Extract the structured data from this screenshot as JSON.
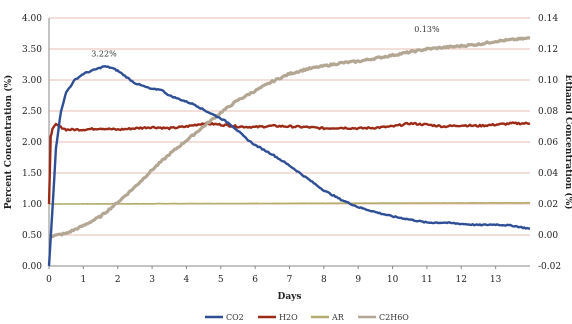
{
  "chart_data": {
    "type": "line",
    "xlabel": "Days",
    "ylabel": "Percent Concentration (%)",
    "y2label": "Ethanol Concentration (%)",
    "xlim": [
      0,
      14
    ],
    "ylim": [
      0,
      4
    ],
    "y2lim": [
      -0.02,
      0.14
    ],
    "x_ticks": [
      0,
      1,
      2,
      3,
      4,
      5,
      6,
      7,
      8,
      9,
      10,
      11,
      12,
      13
    ],
    "y_ticks": [
      "0.00",
      "0.50",
      "1.00",
      "1.50",
      "2.00",
      "2.50",
      "3.00",
      "3.50",
      "4.00"
    ],
    "y2_ticks": [
      "-0.02",
      "0.00",
      "0.02",
      "0.04",
      "0.06",
      "0.08",
      "0.10",
      "0.12",
      "0.14"
    ],
    "grid": "horizontal",
    "legend_position": "bottom",
    "annotations": [
      {
        "text": "3.22%",
        "x": 1.6,
        "y": 3.38,
        "axis": "left"
      },
      {
        "text": "0.13%",
        "x": 11.0,
        "y": 0.131,
        "axis": "right"
      }
    ],
    "series": [
      {
        "name": "CO2",
        "axis": "left",
        "color": "#2e4f95",
        "x": [
          0,
          0.1,
          0.2,
          0.35,
          0.5,
          0.75,
          1,
          1.25,
          1.5,
          1.6,
          1.8,
          2,
          2.25,
          2.5,
          2.75,
          3,
          3.25,
          3.5,
          3.75,
          4,
          4.25,
          4.5,
          4.75,
          5,
          5.25,
          5.5,
          5.75,
          6,
          6.5,
          7,
          7.5,
          8,
          8.5,
          9,
          9.5,
          10,
          10.5,
          11,
          11.5,
          12,
          12.5,
          13,
          13.5,
          14
        ],
        "y": [
          0,
          0.9,
          1.9,
          2.5,
          2.8,
          3.0,
          3.1,
          3.15,
          3.2,
          3.22,
          3.2,
          3.15,
          3.05,
          2.95,
          2.9,
          2.85,
          2.85,
          2.75,
          2.7,
          2.65,
          2.6,
          2.52,
          2.45,
          2.38,
          2.3,
          2.18,
          2.05,
          1.95,
          1.8,
          1.62,
          1.42,
          1.22,
          1.07,
          0.95,
          0.87,
          0.8,
          0.75,
          0.7,
          0.7,
          0.68,
          0.66,
          0.67,
          0.65,
          0.6
        ]
      },
      {
        "name": "H2O",
        "axis": "left",
        "color": "#9b2b16",
        "x": [
          0,
          0.05,
          0.1,
          0.2,
          0.3,
          0.5,
          1,
          1.5,
          2,
          2.5,
          3,
          3.5,
          4,
          4.5,
          5,
          5.5,
          6,
          6.5,
          7,
          7.5,
          8,
          8.5,
          9,
          9.5,
          10,
          10.5,
          11,
          11.5,
          12,
          12.5,
          13,
          13.5,
          14
        ],
        "y": [
          1.0,
          2.1,
          2.2,
          2.28,
          2.25,
          2.2,
          2.2,
          2.22,
          2.2,
          2.22,
          2.24,
          2.22,
          2.25,
          2.3,
          2.28,
          2.25,
          2.24,
          2.26,
          2.25,
          2.24,
          2.22,
          2.23,
          2.22,
          2.23,
          2.25,
          2.3,
          2.28,
          2.25,
          2.27,
          2.26,
          2.28,
          2.3,
          2.3
        ]
      },
      {
        "name": "AR",
        "axis": "left",
        "color": "#b5ab6a",
        "x": [
          0,
          14
        ],
        "y": [
          1.0,
          1.02
        ]
      },
      {
        "name": "C2H6O",
        "axis": "right",
        "color": "#b3a693",
        "x": [
          0,
          0.5,
          1,
          1.5,
          2,
          2.5,
          3,
          3.5,
          4,
          4.5,
          5,
          5.5,
          6,
          6.5,
          7,
          7.5,
          8,
          8.5,
          9,
          9.5,
          10,
          10.5,
          11,
          11.5,
          12,
          12.5,
          13,
          13.5,
          14
        ],
        "y": [
          -0.001,
          0.001,
          0.006,
          0.012,
          0.021,
          0.031,
          0.042,
          0.052,
          0.061,
          0.07,
          0.079,
          0.087,
          0.093,
          0.099,
          0.104,
          0.107,
          0.109,
          0.111,
          0.112,
          0.114,
          0.116,
          0.118,
          0.12,
          0.121,
          0.122,
          0.123,
          0.125,
          0.126,
          0.127
        ]
      }
    ]
  }
}
